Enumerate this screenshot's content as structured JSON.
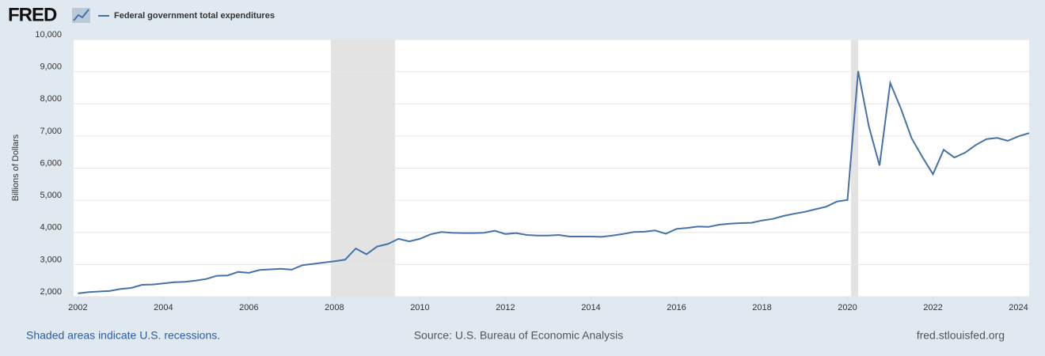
{
  "logo": "FRED",
  "footer": {
    "note": "Shaded areas indicate U.S. recessions.",
    "source": "Source: U.S. Bureau of Economic Analysis",
    "site": "fred.stlouisfed.org"
  },
  "chart_data": {
    "type": "line",
    "y_label": "Billions of Dollars",
    "x": [
      2002,
      2002.25,
      2002.5,
      2002.75,
      2003,
      2003.25,
      2003.5,
      2003.75,
      2004,
      2004.25,
      2004.5,
      2004.75,
      2005,
      2005.25,
      2005.5,
      2005.75,
      2006,
      2006.25,
      2006.5,
      2006.75,
      2007,
      2007.25,
      2007.5,
      2007.75,
      2008,
      2008.25,
      2008.5,
      2008.75,
      2009,
      2009.25,
      2009.5,
      2009.75,
      2010,
      2010.25,
      2010.5,
      2010.75,
      2011,
      2011.25,
      2011.5,
      2011.75,
      2012,
      2012.25,
      2012.5,
      2012.75,
      2013,
      2013.25,
      2013.5,
      2013.75,
      2014,
      2014.25,
      2014.5,
      2014.75,
      2015,
      2015.25,
      2015.5,
      2015.75,
      2016,
      2016.25,
      2016.5,
      2016.75,
      2017,
      2017.25,
      2017.5,
      2017.75,
      2018,
      2018.25,
      2018.5,
      2018.75,
      2019,
      2019.25,
      2019.5,
      2019.75,
      2020,
      2020.25,
      2020.5,
      2020.75,
      2021,
      2021.25,
      2021.5,
      2021.75,
      2022,
      2022.25,
      2022.5,
      2022.75,
      2023,
      2023.25,
      2023.5,
      2023.75,
      2024,
      2024.25
    ],
    "series": [
      {
        "name": "Federal government total expenditures",
        "color": "#4572a7",
        "values": [
          2100,
          2140,
          2160,
          2180,
          2240,
          2270,
          2370,
          2380,
          2410,
          2450,
          2460,
          2500,
          2550,
          2650,
          2660,
          2770,
          2740,
          2830,
          2850,
          2870,
          2840,
          2980,
          3020,
          3060,
          3100,
          3150,
          3500,
          3320,
          3560,
          3640,
          3800,
          3720,
          3800,
          3940,
          4010,
          3990,
          3980,
          3980,
          3990,
          4050,
          3950,
          3980,
          3920,
          3900,
          3900,
          3920,
          3870,
          3870,
          3870,
          3860,
          3900,
          3950,
          4010,
          4020,
          4060,
          3960,
          4110,
          4140,
          4180,
          4170,
          4240,
          4270,
          4290,
          4300,
          4370,
          4420,
          4510,
          4580,
          4640,
          4720,
          4800,
          4960,
          5010,
          9020,
          7300,
          6080,
          8650,
          7850,
          6930,
          6350,
          5810,
          6570,
          6330,
          6480,
          6720,
          6900,
          6940,
          6850,
          6990,
          7090
        ]
      }
    ],
    "recessions": [
      [
        2007.917,
        2009.417
      ],
      [
        2020.083,
        2020.25
      ]
    ],
    "xlim": [
      2001.9,
      2024.25
    ],
    "xticks": [
      2002,
      2004,
      2006,
      2008,
      2010,
      2012,
      2014,
      2016,
      2018,
      2020,
      2022,
      2024
    ],
    "ylim": [
      2000,
      10000
    ],
    "yticks": [
      {
        "value": 2000,
        "label": "2,000"
      },
      {
        "value": 3000,
        "label": "3,000"
      },
      {
        "value": 4000,
        "label": "4,000"
      },
      {
        "value": 5000,
        "label": "5,000"
      },
      {
        "value": 6000,
        "label": "6,000"
      },
      {
        "value": 7000,
        "label": "7,000"
      },
      {
        "value": 8000,
        "label": "8,000"
      },
      {
        "value": 9000,
        "label": "9,000"
      },
      {
        "value": 10000,
        "label": "10,000"
      }
    ],
    "grid": true
  }
}
